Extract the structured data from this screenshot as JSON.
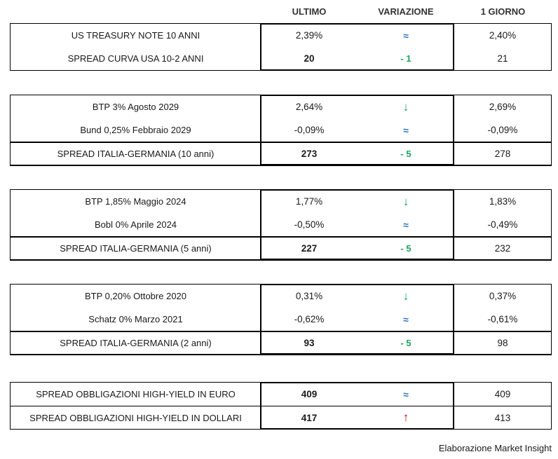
{
  "chart_data": {
    "type": "table",
    "columns": [
      "ULTIMO",
      "VARIAZIONE",
      "1 GIORNO"
    ],
    "blocks": [
      {
        "rows": [
          {
            "label": "US TREASURY NOTE 10 ANNI",
            "ultimo": "2,39%",
            "variazione": "≈",
            "variazione_kind": "unchanged",
            "giorno": "2,40%"
          },
          {
            "label": "SPREAD CURVA USA 10-2 ANNI",
            "ultimo": "20",
            "variazione": "- 1",
            "variazione_kind": "down",
            "giorno": "21"
          }
        ]
      },
      {
        "rows": [
          {
            "label": "BTP 3% Agosto 2029",
            "ultimo": "2,64%",
            "variazione": "↓",
            "variazione_kind": "down",
            "giorno": "2,69%"
          },
          {
            "label": "Bund 0,25% Febbraio 2029",
            "ultimo": "-0,09%",
            "variazione": "≈",
            "variazione_kind": "unchanged",
            "giorno": "-0,09%"
          },
          {
            "label": "SPREAD ITALIA-GERMANIA (10 anni)",
            "ultimo": "273",
            "variazione": "- 5",
            "variazione_kind": "down",
            "giorno": "278"
          }
        ]
      },
      {
        "rows": [
          {
            "label": "BTP 1,85% Maggio 2024",
            "ultimo": "1,77%",
            "variazione": "↓",
            "variazione_kind": "down",
            "giorno": "1,83%"
          },
          {
            "label": "Bobl 0% Aprile 2024",
            "ultimo": "-0,50%",
            "variazione": "≈",
            "variazione_kind": "unchanged",
            "giorno": "-0,49%"
          },
          {
            "label": "SPREAD ITALIA-GERMANIA (5 anni)",
            "ultimo": "227",
            "variazione": "- 5",
            "variazione_kind": "down",
            "giorno": "232"
          }
        ]
      },
      {
        "rows": [
          {
            "label": "BTP 0,20% Ottobre 2020",
            "ultimo": "0,31%",
            "variazione": "↓",
            "variazione_kind": "down",
            "giorno": "0,37%"
          },
          {
            "label": "Schatz 0% Marzo 2021",
            "ultimo": "-0,62%",
            "variazione": "≈",
            "variazione_kind": "unchanged",
            "giorno": "-0,61%"
          },
          {
            "label": "SPREAD ITALIA-GERMANIA (2 anni)",
            "ultimo": "93",
            "variazione": "- 5",
            "variazione_kind": "down",
            "giorno": "98"
          }
        ]
      },
      {
        "rows": [
          {
            "label": "SPREAD OBBLIGAZIONI HIGH-YIELD IN EURO",
            "ultimo": "409",
            "variazione": "≈",
            "variazione_kind": "unchanged",
            "giorno": "409"
          },
          {
            "label": "SPREAD OBBLIGAZIONI HIGH-YIELD IN DOLLARI",
            "ultimo": "417",
            "variazione": "↑",
            "variazione_kind": "up",
            "giorno": "413"
          }
        ]
      }
    ]
  },
  "footer": {
    "credit": "Elaborazione Market Insight"
  },
  "colors": {
    "unchanged_blue": "#2E75B6",
    "down_green": "#1DA35B",
    "up_red": "#C00000",
    "border_black": "#000000",
    "background": "#ffffff"
  }
}
